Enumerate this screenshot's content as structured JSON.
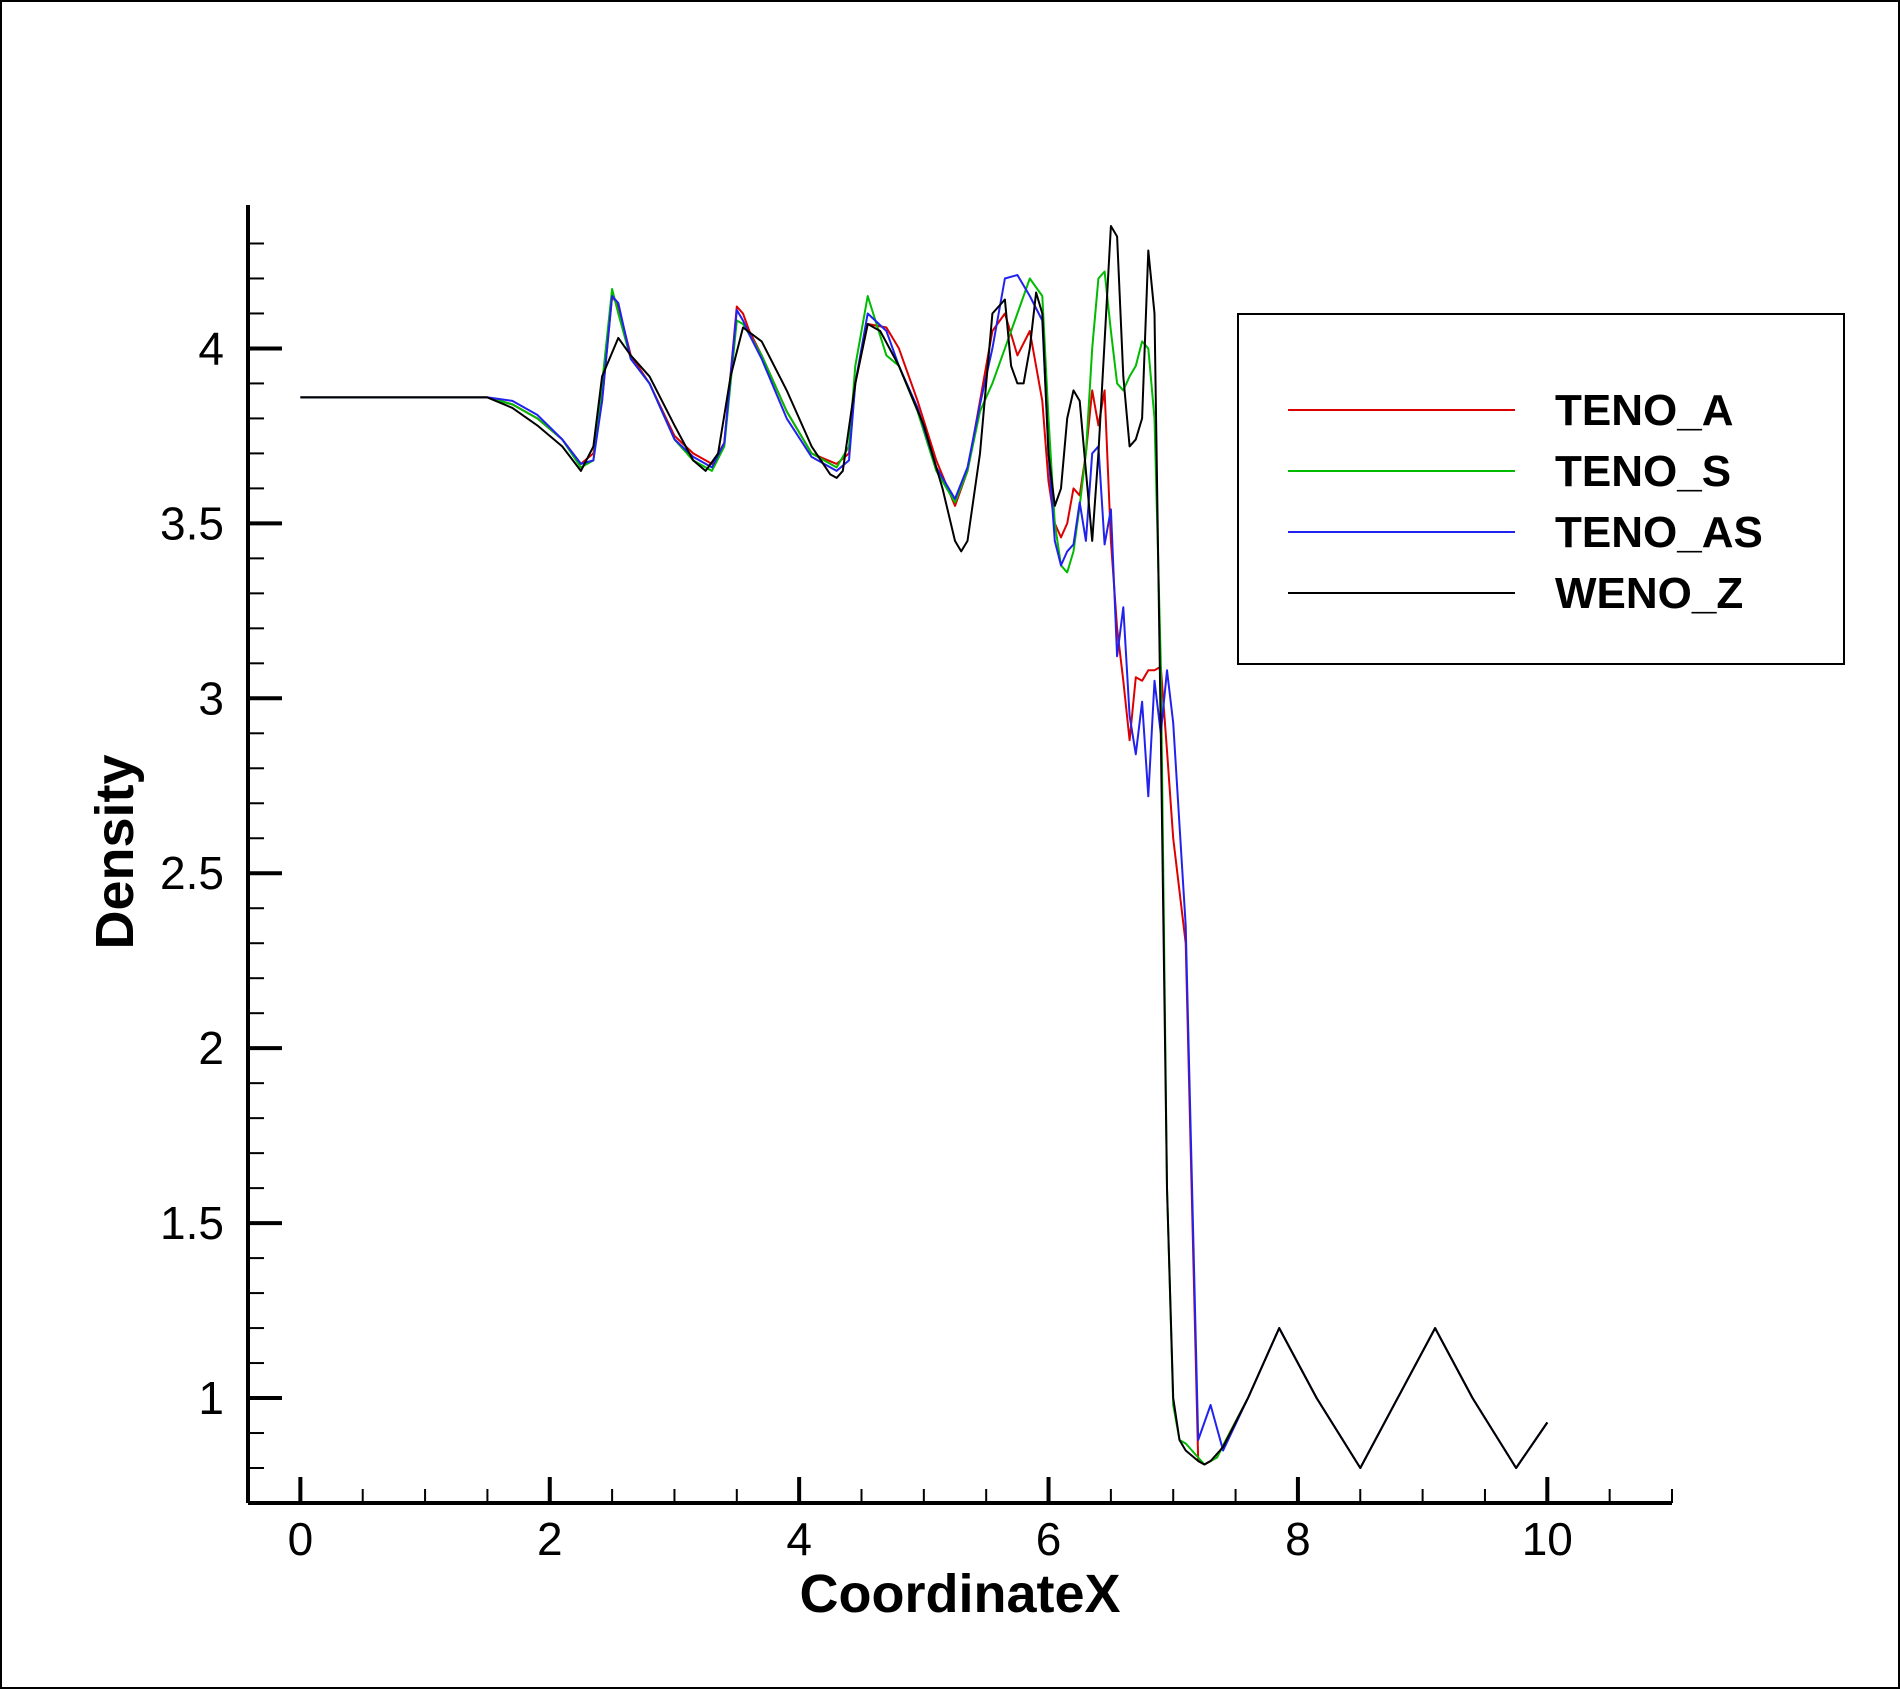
{
  "chart_data": {
    "type": "line",
    "title": "",
    "xlabel": "CoordinateX",
    "ylabel": "Density",
    "xlim": [
      -0.42,
      11.0
    ],
    "ylim": [
      0.7,
      4.41
    ],
    "x_ticks": [
      "0",
      "2",
      "4",
      "6",
      "8",
      "10"
    ],
    "y_ticks": [
      "1",
      "1.5",
      "2",
      "2.5",
      "3",
      "3.5",
      "4"
    ],
    "legend_position": "top-right",
    "grid": false,
    "series": [
      {
        "name": "TENO_A",
        "color": "#dd0000",
        "x": [
          0,
          1.5,
          1.7,
          1.9,
          2.1,
          2.25,
          2.35,
          2.42,
          2.5,
          2.55,
          2.65,
          2.8,
          3.0,
          3.15,
          3.3,
          3.4,
          3.5,
          3.55,
          3.6,
          3.7,
          3.9,
          4.1,
          4.3,
          4.4,
          4.45,
          4.55,
          4.7,
          4.8,
          4.95,
          5.1,
          5.25,
          5.35,
          5.45,
          5.55,
          5.65,
          5.75,
          5.85,
          5.95,
          6.0,
          6.05,
          6.1,
          6.15,
          6.2,
          6.25,
          6.3,
          6.35,
          6.4,
          6.45,
          6.5,
          6.55,
          6.6,
          6.65,
          6.7,
          6.75,
          6.8,
          6.85,
          6.9,
          6.95,
          7.0,
          7.1,
          7.2,
          7.25,
          7.35,
          7.6,
          7.85,
          8.15,
          8.5,
          8.8,
          9.1,
          9.4,
          9.75,
          10.0
        ],
        "y": [
          3.86,
          3.86,
          3.84,
          3.8,
          3.74,
          3.67,
          3.7,
          3.85,
          4.15,
          4.12,
          3.98,
          3.9,
          3.75,
          3.7,
          3.67,
          3.73,
          4.12,
          4.1,
          4.05,
          3.98,
          3.82,
          3.7,
          3.67,
          3.7,
          3.9,
          4.07,
          4.06,
          4.0,
          3.85,
          3.68,
          3.55,
          3.65,
          3.85,
          4.05,
          4.1,
          3.98,
          4.05,
          3.85,
          3.62,
          3.5,
          3.46,
          3.5,
          3.6,
          3.58,
          3.7,
          3.88,
          3.78,
          3.88,
          3.45,
          3.2,
          3.05,
          2.88,
          3.06,
          3.05,
          3.08,
          3.08,
          3.09,
          2.85,
          2.6,
          2.3,
          0.82,
          0.81,
          0.83,
          1.0,
          1.2,
          1.0,
          0.8,
          1.0,
          1.2,
          1.0,
          0.8,
          0.93
        ]
      },
      {
        "name": "TENO_S",
        "color": "#00bb00",
        "x": [
          0,
          1.5,
          1.7,
          1.9,
          2.1,
          2.25,
          2.35,
          2.42,
          2.5,
          2.55,
          2.65,
          2.8,
          3.0,
          3.15,
          3.3,
          3.4,
          3.5,
          3.55,
          3.6,
          3.7,
          3.9,
          4.1,
          4.3,
          4.4,
          4.45,
          4.55,
          4.7,
          4.8,
          4.95,
          5.1,
          5.25,
          5.35,
          5.45,
          5.55,
          5.65,
          5.75,
          5.85,
          5.95,
          6.0,
          6.05,
          6.1,
          6.15,
          6.2,
          6.25,
          6.3,
          6.35,
          6.4,
          6.45,
          6.5,
          6.55,
          6.6,
          6.65,
          6.7,
          6.75,
          6.8,
          6.85,
          6.9,
          6.95,
          7.0,
          7.05,
          7.1,
          7.2,
          7.25,
          7.35,
          7.6,
          7.85,
          8.15,
          8.5,
          8.8,
          9.1,
          9.4,
          9.75,
          10.0
        ],
        "y": [
          3.86,
          3.86,
          3.84,
          3.8,
          3.74,
          3.66,
          3.68,
          3.9,
          4.17,
          4.1,
          3.97,
          3.9,
          3.74,
          3.68,
          3.65,
          3.72,
          4.08,
          4.07,
          4.04,
          3.98,
          3.82,
          3.7,
          3.66,
          3.72,
          3.95,
          4.15,
          3.98,
          3.95,
          3.82,
          3.65,
          3.56,
          3.65,
          3.82,
          3.9,
          4.0,
          4.1,
          4.2,
          4.15,
          3.8,
          3.5,
          3.38,
          3.36,
          3.42,
          3.55,
          3.7,
          4.0,
          4.2,
          4.22,
          4.05,
          3.9,
          3.88,
          3.92,
          3.95,
          4.02,
          4.0,
          3.8,
          3.1,
          1.6,
          0.98,
          0.88,
          0.87,
          0.83,
          0.81,
          0.83,
          1.0,
          1.2,
          1.0,
          0.8,
          1.0,
          1.2,
          1.0,
          0.8,
          0.93
        ]
      },
      {
        "name": "TENO_AS",
        "color": "#2222ee",
        "x": [
          0,
          1.5,
          1.7,
          1.9,
          2.1,
          2.25,
          2.35,
          2.42,
          2.5,
          2.55,
          2.65,
          2.8,
          3.0,
          3.15,
          3.3,
          3.4,
          3.5,
          3.55,
          3.6,
          3.7,
          3.9,
          4.1,
          4.3,
          4.4,
          4.45,
          4.55,
          4.7,
          4.8,
          4.95,
          5.1,
          5.25,
          5.35,
          5.45,
          5.55,
          5.65,
          5.75,
          5.85,
          5.95,
          6.0,
          6.05,
          6.1,
          6.15,
          6.2,
          6.25,
          6.3,
          6.35,
          6.4,
          6.45,
          6.5,
          6.55,
          6.6,
          6.65,
          6.7,
          6.75,
          6.8,
          6.85,
          6.9,
          6.95,
          7.0,
          7.1,
          7.2,
          7.25,
          7.3,
          7.4,
          7.6,
          7.85,
          8.15,
          8.5,
          8.8,
          9.1,
          9.4,
          9.75,
          10.0
        ],
        "y": [
          3.86,
          3.86,
          3.85,
          3.81,
          3.74,
          3.67,
          3.68,
          3.85,
          4.15,
          4.13,
          3.97,
          3.9,
          3.74,
          3.69,
          3.66,
          3.73,
          4.11,
          4.08,
          4.04,
          3.97,
          3.8,
          3.69,
          3.65,
          3.68,
          3.9,
          4.1,
          4.05,
          3.95,
          3.83,
          3.66,
          3.57,
          3.66,
          3.84,
          4.0,
          4.2,
          4.21,
          4.15,
          4.08,
          3.7,
          3.45,
          3.38,
          3.42,
          3.44,
          3.56,
          3.45,
          3.7,
          3.72,
          3.44,
          3.54,
          3.12,
          3.26,
          2.95,
          2.84,
          2.99,
          2.72,
          3.05,
          2.9,
          3.08,
          2.93,
          2.35,
          0.88,
          0.93,
          0.98,
          0.85,
          1.0,
          1.2,
          1.0,
          0.8,
          1.0,
          1.2,
          1.0,
          0.8,
          0.93
        ]
      },
      {
        "name": "WENO_Z",
        "color": "#000000",
        "x": [
          0,
          1.5,
          1.7,
          1.9,
          2.1,
          2.25,
          2.35,
          2.42,
          2.55,
          2.65,
          2.8,
          3.0,
          3.15,
          3.25,
          3.35,
          3.45,
          3.55,
          3.7,
          3.9,
          4.1,
          4.25,
          4.3,
          4.35,
          4.45,
          4.55,
          4.65,
          4.8,
          5.0,
          5.15,
          5.25,
          5.3,
          5.35,
          5.45,
          5.55,
          5.65,
          5.7,
          5.75,
          5.8,
          5.85,
          5.9,
          5.95,
          6.0,
          6.05,
          6.1,
          6.15,
          6.2,
          6.25,
          6.3,
          6.35,
          6.4,
          6.45,
          6.5,
          6.55,
          6.6,
          6.65,
          6.7,
          6.75,
          6.8,
          6.85,
          6.9,
          6.95,
          7.0,
          7.05,
          7.1,
          7.2,
          7.25,
          7.3,
          7.4,
          7.6,
          7.85,
          8.15,
          8.5,
          8.8,
          9.1,
          9.4,
          9.75,
          10.0
        ],
        "y": [
          3.86,
          3.86,
          3.83,
          3.78,
          3.72,
          3.65,
          3.72,
          3.92,
          4.03,
          3.98,
          3.92,
          3.78,
          3.68,
          3.65,
          3.7,
          3.92,
          4.06,
          4.02,
          3.88,
          3.72,
          3.64,
          3.63,
          3.65,
          3.9,
          4.07,
          4.05,
          3.95,
          3.78,
          3.6,
          3.45,
          3.42,
          3.45,
          3.7,
          4.1,
          4.14,
          3.95,
          3.9,
          3.9,
          4.0,
          4.16,
          4.1,
          3.7,
          3.55,
          3.6,
          3.8,
          3.88,
          3.85,
          3.65,
          3.45,
          3.7,
          4.02,
          4.35,
          4.32,
          3.92,
          3.72,
          3.74,
          3.8,
          4.28,
          4.1,
          2.9,
          1.6,
          1.0,
          0.88,
          0.85,
          0.82,
          0.81,
          0.82,
          0.86,
          1.0,
          1.2,
          1.0,
          0.8,
          1.0,
          1.2,
          1.0,
          0.8,
          0.93
        ]
      }
    ]
  }
}
